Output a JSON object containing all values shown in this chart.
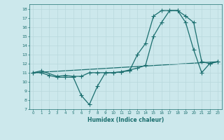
{
  "xlabel": "Humidex (Indice chaleur)",
  "xlim": [
    -0.5,
    23.5
  ],
  "ylim": [
    7,
    18.5
  ],
  "xticks": [
    0,
    1,
    2,
    3,
    4,
    5,
    6,
    7,
    8,
    9,
    10,
    11,
    12,
    13,
    14,
    15,
    16,
    17,
    18,
    19,
    20,
    21,
    22,
    23
  ],
  "yticks": [
    7,
    8,
    9,
    10,
    11,
    12,
    13,
    14,
    15,
    16,
    17,
    18
  ],
  "bg_color": "#cce8ec",
  "line_color": "#1a6e6e",
  "line1_x": [
    0,
    1,
    2,
    3,
    4,
    5,
    6,
    7,
    8,
    9,
    10,
    11,
    12,
    13,
    14,
    15,
    16,
    17,
    18,
    19,
    20,
    21,
    22,
    23
  ],
  "line1_y": [
    11,
    11,
    10.7,
    10.5,
    10.5,
    10.5,
    8.5,
    7.5,
    9.5,
    11,
    11,
    11.1,
    11.2,
    13,
    14.2,
    17.2,
    17.8,
    17.8,
    17.8,
    16.5,
    13.5,
    11,
    12,
    12.2
  ],
  "line2_x": [
    0,
    1,
    3,
    4,
    5,
    6,
    7,
    8,
    9,
    10,
    11,
    12,
    13,
    14,
    15,
    16,
    17,
    18,
    19,
    20,
    21,
    22,
    23
  ],
  "line2_y": [
    11,
    11.2,
    10.6,
    10.7,
    10.6,
    10.6,
    11,
    11,
    11,
    11,
    11.1,
    11.3,
    11.5,
    11.8,
    15,
    16.5,
    17.8,
    17.8,
    17.2,
    16.5,
    12.2,
    12.0,
    12.2
  ],
  "line3_x": [
    0,
    23
  ],
  "line3_y": [
    11,
    12.2
  ],
  "grid_color": "#b8d8dc"
}
